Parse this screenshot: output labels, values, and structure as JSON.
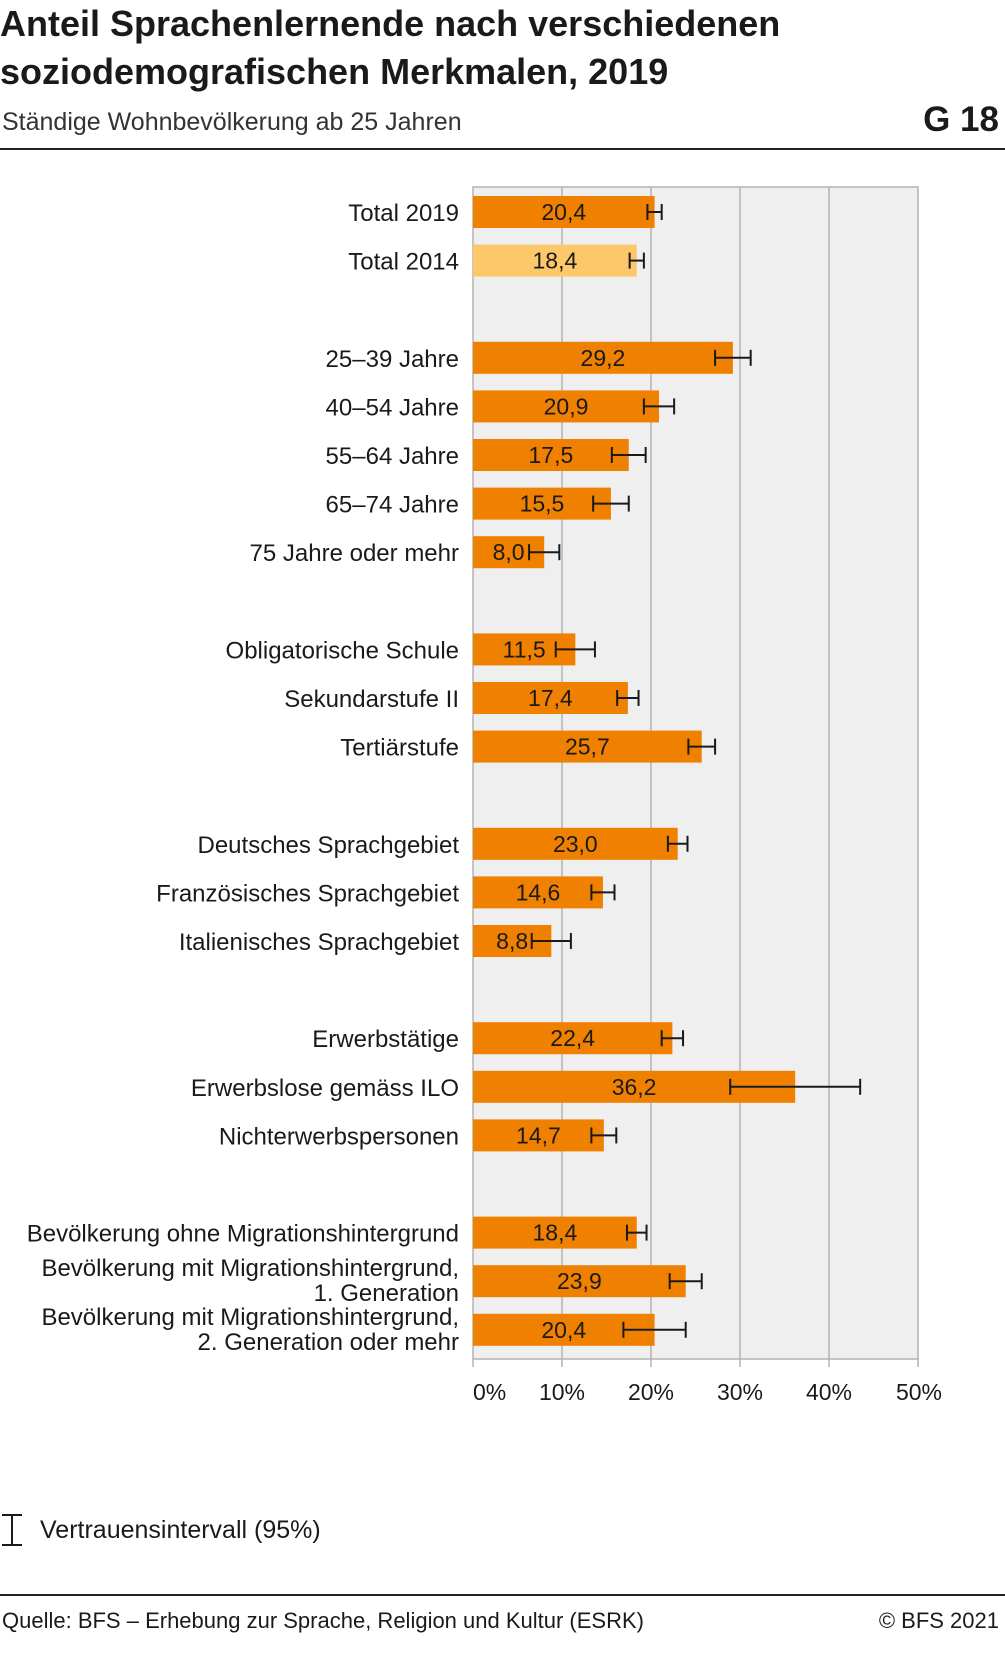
{
  "title": "Anteil Sprachenlernende nach verschiedenen soziodemografischen Merkmalen, 2019",
  "subtitle": "Ständige Wohnbevölkerung ab 25 Jahren",
  "chart_code": "G 18",
  "legend": {
    "label": "Vertrauensintervall (95%)",
    "icon": "error-bar-icon"
  },
  "source": "Quelle: BFS – Erhebung zur Sprache, Religion und Kultur (ESRK)",
  "copyright": "© BFS 2021",
  "colors": {
    "bar": "#f08000",
    "bar_2014": "#fdc86a",
    "plot_bg": "#efefef",
    "grid": "#b3b3b3",
    "error": "#1a1a1a"
  },
  "chart_data": {
    "type": "bar",
    "orientation": "horizontal",
    "xlim": [
      0,
      50
    ],
    "ticks": [
      "0%",
      "10%",
      "20%",
      "30%",
      "40%",
      "50%"
    ],
    "grid": true,
    "categories": [
      [
        "Total 2019"
      ],
      [
        "Total 2014"
      ],
      [
        "25–39 Jahre"
      ],
      [
        "40–54 Jahre"
      ],
      [
        "55–64 Jahre"
      ],
      [
        "65–74 Jahre"
      ],
      [
        "75 Jahre oder mehr"
      ],
      [
        "Obligatorische Schule"
      ],
      [
        "Sekundarstufe II"
      ],
      [
        "Tertiärstufe"
      ],
      [
        "Deutsches Sprachgebiet"
      ],
      [
        "Französisches Sprachgebiet"
      ],
      [
        "Italienisches Sprachgebiet"
      ],
      [
        "Erwerbstätige"
      ],
      [
        "Erwerbslose gemäss ILO"
      ],
      [
        "Nichterwerbspersonen"
      ],
      [
        "Bevölkerung ohne Migrationshintergrund"
      ],
      [
        "Bevölkerung mit Migrationshintergrund,",
        "1. Generation"
      ],
      [
        "Bevölkerung mit Migrationshintergrund,",
        "2. Generation oder mehr"
      ]
    ],
    "values": [
      20.4,
      18.4,
      29.2,
      20.9,
      17.5,
      15.5,
      8.0,
      11.5,
      17.4,
      25.7,
      23.0,
      14.6,
      8.8,
      22.4,
      36.2,
      14.7,
      18.4,
      23.9,
      20.4
    ],
    "value_labels": [
      "20,4",
      "18,4",
      "29,2",
      "20,9",
      "17,5",
      "15,5",
      "8,0",
      "11,5",
      "17,4",
      "25,7",
      "23,0",
      "14,6",
      "8,8",
      "22,4",
      "36,2",
      "14,7",
      "18,4",
      "23,9",
      "20,4"
    ],
    "ci_low": [
      19.6,
      17.6,
      27.2,
      19.2,
      15.6,
      13.5,
      6.3,
      9.3,
      16.2,
      24.2,
      21.9,
      13.3,
      6.6,
      21.2,
      28.9,
      13.3,
      17.3,
      22.1,
      16.9
    ],
    "ci_high": [
      21.2,
      19.2,
      31.2,
      22.6,
      19.4,
      17.5,
      9.7,
      13.7,
      18.6,
      27.2,
      24.1,
      15.9,
      11.0,
      23.6,
      43.5,
      16.1,
      19.5,
      25.7,
      23.9
    ],
    "group_of_bar": [
      0,
      0,
      1,
      1,
      1,
      1,
      1,
      2,
      2,
      2,
      3,
      3,
      3,
      4,
      4,
      4,
      5,
      5,
      5
    ],
    "series_year": [
      "2019",
      "2014",
      "2019",
      "2019",
      "2019",
      "2019",
      "2019",
      "2019",
      "2019",
      "2019",
      "2019",
      "2019",
      "2019",
      "2019",
      "2019",
      "2019",
      "2019",
      "2019",
      "2019"
    ]
  }
}
